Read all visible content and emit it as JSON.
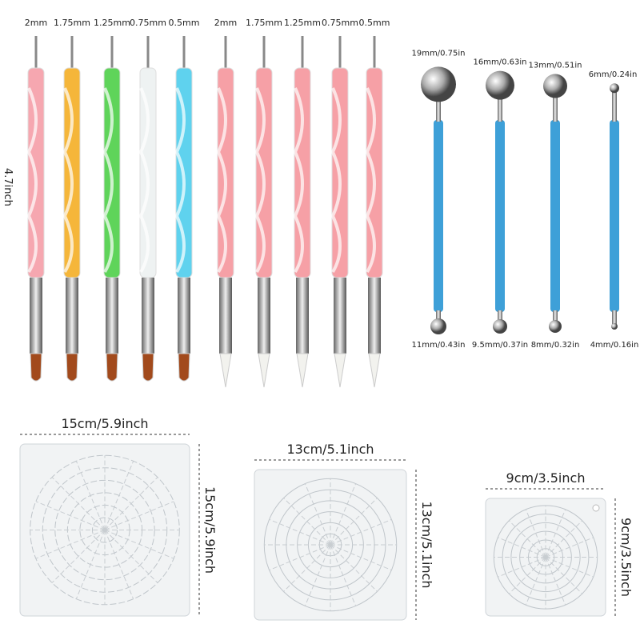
{
  "pens": {
    "height_label": "4.7inch",
    "tip_labels": [
      "2mm",
      "1.75mm",
      "1.25mm",
      "0.75mm",
      "0.5mm",
      "2mm",
      "1.75mm",
      "1.25mm",
      "0.75mm",
      "0.5mm"
    ]
  },
  "ball_tools": [
    {
      "top": "19mm/0.75in",
      "bottom": "11mm/0.43in"
    },
    {
      "top": "16mm/0.63in",
      "bottom": "9.5mm/0.37in"
    },
    {
      "top": "13mm/0.51in",
      "bottom": "8mm/0.32in"
    },
    {
      "top": "6mm/0.24in",
      "bottom": "4mm/0.16in"
    }
  ],
  "stencils": [
    {
      "width": "15cm/5.9inch",
      "height": "15cm/5.9inch"
    },
    {
      "width": "13cm/5.1inch",
      "height": "13cm/5.1inch"
    },
    {
      "width": "9cm/3.5inch",
      "height": "9cm/3.5inch"
    }
  ]
}
